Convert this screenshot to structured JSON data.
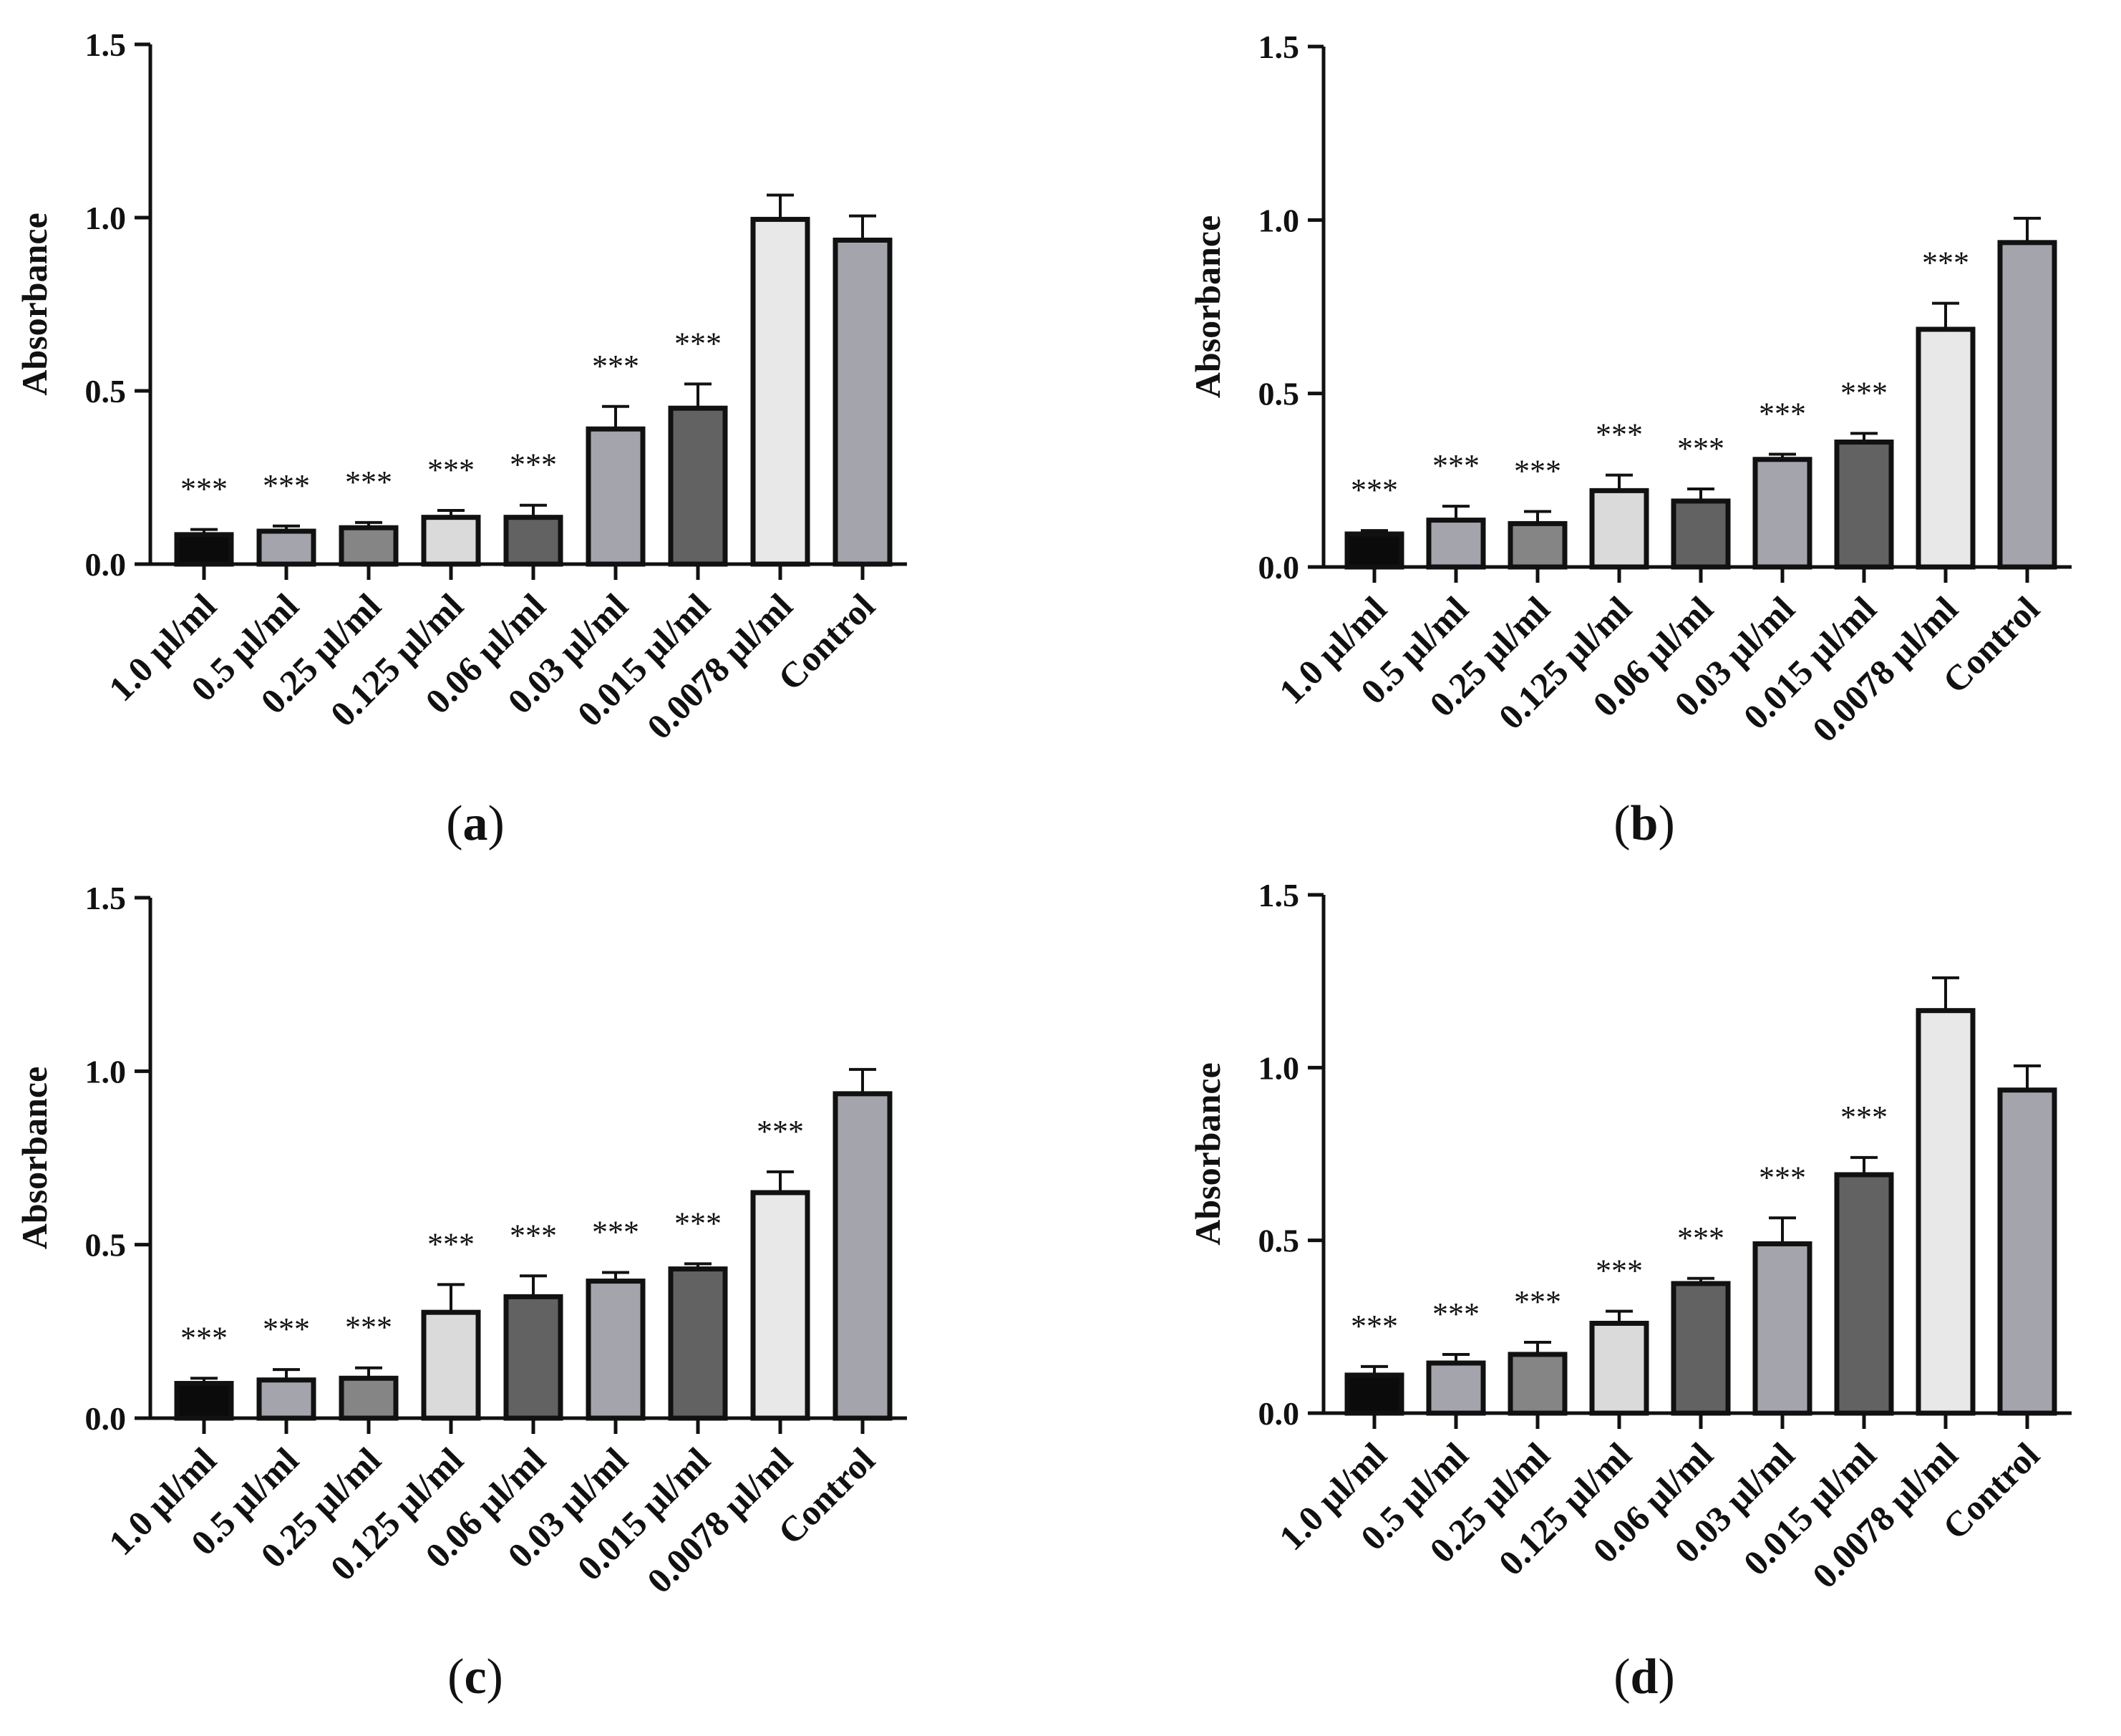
{
  "figure": {
    "axis_style": {
      "line_color": "#111111",
      "error_bar_color": "#111111"
    }
  },
  "chart_data": [
    {
      "id": "a",
      "type": "bar",
      "panel_label": "a",
      "ylabel": "Absorbance",
      "ylim": [
        0,
        1.5
      ],
      "yticks": [
        "0.0",
        "0.5",
        "1.0",
        "1.5"
      ],
      "categories": [
        "1.0 µl/ml",
        "0.5 µl/ml",
        "0.25 µl/ml",
        "0.125 µl/ml",
        "0.06 µl/ml",
        "0.03 µl/ml",
        "0.015 µl/ml",
        "0.0078 µl/ml",
        "Control"
      ],
      "values": [
        0.085,
        0.095,
        0.105,
        0.135,
        0.135,
        0.39,
        0.45,
        0.995,
        0.935
      ],
      "errors": [
        0.015,
        0.015,
        0.015,
        0.02,
        0.035,
        0.065,
        0.07,
        0.07,
        0.07
      ],
      "significance": [
        "***",
        "***",
        "***",
        "***",
        "***",
        "***",
        "***",
        "",
        ""
      ],
      "bar_colors": [
        "#0b0b0b",
        "#a4a4ac",
        "#858585",
        "#dadada",
        "#626262",
        "#a4a4ac",
        "#626262",
        "#e8e8e8",
        "#a4a4ac"
      ]
    },
    {
      "id": "b",
      "type": "bar",
      "panel_label": "b",
      "ylabel": "Absorbance",
      "ylim": [
        0,
        1.5
      ],
      "yticks": [
        "0.0",
        "0.5",
        "1.0",
        "1.5"
      ],
      "categories": [
        "1.0 µl/ml",
        "0.5 µl/ml",
        "0.25 µl/ml",
        "0.125 µl/ml",
        "0.06 µl/ml",
        "0.03 µl/ml",
        "0.015 µl/ml",
        "0.0078 µl/ml",
        "Control"
      ],
      "values": [
        0.095,
        0.135,
        0.125,
        0.22,
        0.19,
        0.31,
        0.36,
        0.685,
        0.935
      ],
      "errors": [
        0.01,
        0.04,
        0.035,
        0.045,
        0.035,
        0.015,
        0.025,
        0.075,
        0.07
      ],
      "significance": [
        "***",
        "***",
        "***",
        "***",
        "***",
        "***",
        "***",
        "***",
        ""
      ],
      "bar_colors": [
        "#0b0b0b",
        "#a4a4ac",
        "#858585",
        "#dadada",
        "#626262",
        "#a4a4ac",
        "#626262",
        "#e8e8e8",
        "#a4a4ac"
      ]
    },
    {
      "id": "c",
      "type": "bar",
      "panel_label": "c",
      "ylabel": "Absorbance",
      "ylim": [
        0,
        1.5
      ],
      "yticks": [
        "0.0",
        "0.5",
        "1.0",
        "1.5"
      ],
      "categories": [
        "1.0 µl/ml",
        "0.5 µl/ml",
        "0.25 µl/ml",
        "0.125 µl/ml",
        "0.06 µl/ml",
        "0.03 µl/ml",
        "0.015 µl/ml",
        "0.0078 µl/ml",
        "Control"
      ],
      "values": [
        0.1,
        0.11,
        0.115,
        0.305,
        0.35,
        0.395,
        0.43,
        0.65,
        0.935
      ],
      "errors": [
        0.015,
        0.03,
        0.03,
        0.08,
        0.06,
        0.025,
        0.015,
        0.06,
        0.07
      ],
      "significance": [
        "***",
        "***",
        "***",
        "***",
        "***",
        "***",
        "***",
        "***",
        ""
      ],
      "bar_colors": [
        "#0b0b0b",
        "#a4a4ac",
        "#858585",
        "#dadada",
        "#626262",
        "#a4a4ac",
        "#626262",
        "#e8e8e8",
        "#a4a4ac"
      ]
    },
    {
      "id": "d",
      "type": "bar",
      "panel_label": "d",
      "ylabel": "Absorbance",
      "ylim": [
        0,
        1.5
      ],
      "yticks": [
        "0.0",
        "0.5",
        "1.0",
        "1.5"
      ],
      "categories": [
        "1.0 µl/ml",
        "0.5 µl/ml",
        "0.25 µl/ml",
        "0.125 µl/ml",
        "0.06 µl/ml",
        "0.03 µl/ml",
        "0.015 µl/ml",
        "0.0078 µl/ml",
        "Control"
      ],
      "values": [
        0.11,
        0.145,
        0.17,
        0.26,
        0.375,
        0.49,
        0.69,
        1.165,
        0.935
      ],
      "errors": [
        0.025,
        0.025,
        0.035,
        0.035,
        0.015,
        0.075,
        0.05,
        0.095,
        0.07
      ],
      "significance": [
        "***",
        "***",
        "***",
        "***",
        "***",
        "***",
        "***",
        "",
        ""
      ],
      "bar_colors": [
        "#0b0b0b",
        "#a4a4ac",
        "#858585",
        "#dadada",
        "#626262",
        "#a4a4ac",
        "#626262",
        "#e8e8e8",
        "#a4a4ac"
      ]
    }
  ]
}
